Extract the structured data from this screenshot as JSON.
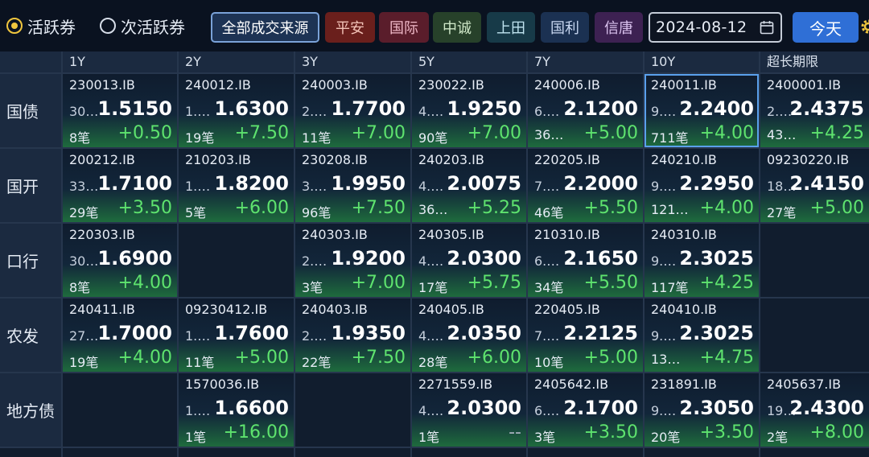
{
  "toolbar": {
    "radio_active": "活跃券",
    "radio_sub": "次活跃券",
    "all_sources": "全部成交来源",
    "sources": [
      "平安",
      "国际",
      "中诚",
      "上田",
      "国利",
      "信唐"
    ],
    "date": "2024-08-12",
    "today": "今天",
    "colors": {
      "accent": "#2f6fd6",
      "up": "#5ee36e",
      "selected_radio": "#f0c63e"
    }
  },
  "columns": [
    "1Y",
    "2Y",
    "3Y",
    "5Y",
    "7Y",
    "10Y",
    "超长期限"
  ],
  "rows": [
    {
      "label": "国债",
      "cells": [
        {
          "code": "230013.IB",
          "amt": "30…",
          "price": "1.5150",
          "cnt": "8笔",
          "chg": "+0.50"
        },
        {
          "code": "240012.IB",
          "amt": "1.…",
          "price": "1.6300",
          "cnt": "19笔",
          "chg": "+7.50"
        },
        {
          "code": "240003.IB",
          "amt": "2.…",
          "price": "1.7700",
          "cnt": "11笔",
          "chg": "+7.00"
        },
        {
          "code": "230022.IB",
          "amt": "4.…",
          "price": "1.9250",
          "cnt": "90笔",
          "chg": "+7.00"
        },
        {
          "code": "240006.IB",
          "amt": "6.…",
          "price": "2.1200",
          "cnt": "36…",
          "chg": "+5.00"
        },
        {
          "code": "240011.IB",
          "amt": "9.…",
          "price": "2.2400",
          "cnt": "711笔",
          "chg": "+4.00",
          "selected": true
        },
        {
          "code": "2400001.IB",
          "amt": "2.…",
          "price": "2.4375",
          "cnt": "43…",
          "chg": "+4.25"
        }
      ]
    },
    {
      "label": "国开",
      "cells": [
        {
          "code": "200212.IB",
          "amt": "33…",
          "price": "1.7100",
          "cnt": "29笔",
          "chg": "+3.50"
        },
        {
          "code": "210203.IB",
          "amt": "1.…",
          "price": "1.8200",
          "cnt": "5笔",
          "chg": "+6.00"
        },
        {
          "code": "230208.IB",
          "amt": "3.…",
          "price": "1.9950",
          "cnt": "96笔",
          "chg": "+7.50"
        },
        {
          "code": "240203.IB",
          "amt": "4.…",
          "price": "2.0075",
          "cnt": "36…",
          "chg": "+5.25"
        },
        {
          "code": "220205.IB",
          "amt": "7.…",
          "price": "2.2000",
          "cnt": "46笔",
          "chg": "+5.50"
        },
        {
          "code": "240210.IB",
          "amt": "9.…",
          "price": "2.2950",
          "cnt": "121…",
          "chg": "+4.00"
        },
        {
          "code": "09230220.IB",
          "amt": "18…",
          "price": "2.4150",
          "cnt": "27笔",
          "chg": "+5.00"
        }
      ]
    },
    {
      "label": "口行",
      "cells": [
        {
          "code": "220303.IB",
          "amt": "30…",
          "price": "1.6900",
          "cnt": "8笔",
          "chg": "+4.00"
        },
        null,
        {
          "code": "240303.IB",
          "amt": "2.…",
          "price": "1.9200",
          "cnt": "3笔",
          "chg": "+7.00"
        },
        {
          "code": "240305.IB",
          "amt": "4.…",
          "price": "2.0300",
          "cnt": "17笔",
          "chg": "+5.75"
        },
        {
          "code": "210310.IB",
          "amt": "6.…",
          "price": "2.1650",
          "cnt": "34笔",
          "chg": "+5.50"
        },
        {
          "code": "240310.IB",
          "amt": "9.…",
          "price": "2.3025",
          "cnt": "117笔",
          "chg": "+4.25"
        },
        null
      ]
    },
    {
      "label": "农发",
      "cells": [
        {
          "code": "240411.IB",
          "amt": "27…",
          "price": "1.7000",
          "cnt": "19笔",
          "chg": "+4.00"
        },
        {
          "code": "09230412.IB",
          "amt": "1.…",
          "price": "1.7600",
          "cnt": "11笔",
          "chg": "+5.00"
        },
        {
          "code": "240403.IB",
          "amt": "2.…",
          "price": "1.9350",
          "cnt": "22笔",
          "chg": "+7.50"
        },
        {
          "code": "240405.IB",
          "amt": "4.…",
          "price": "2.0350",
          "cnt": "28笔",
          "chg": "+6.00"
        },
        {
          "code": "220405.IB",
          "amt": "7.…",
          "price": "2.2125",
          "cnt": "10笔",
          "chg": "+5.00"
        },
        {
          "code": "240410.IB",
          "amt": "9.…",
          "price": "2.3025",
          "cnt": "13…",
          "chg": "+4.75"
        },
        null
      ]
    },
    {
      "label": "地方债",
      "cells": [
        null,
        {
          "code": "1570036.IB",
          "amt": "1.…",
          "price": "1.6600",
          "cnt": "1笔",
          "chg": "+16.00"
        },
        null,
        {
          "code": "2271559.IB",
          "amt": "4.…",
          "price": "2.0300",
          "cnt": "1笔",
          "chg": "--"
        },
        {
          "code": "2405642.IB",
          "amt": "6.…",
          "price": "2.1700",
          "cnt": "3笔",
          "chg": "+3.50"
        },
        {
          "code": "231891.IB",
          "amt": "9.…",
          "price": "2.3050",
          "cnt": "20笔",
          "chg": "+3.50"
        },
        {
          "code": "2405637.IB",
          "amt": "19…",
          "price": "2.4300",
          "cnt": "2笔",
          "chg": "+8.00"
        }
      ]
    }
  ]
}
